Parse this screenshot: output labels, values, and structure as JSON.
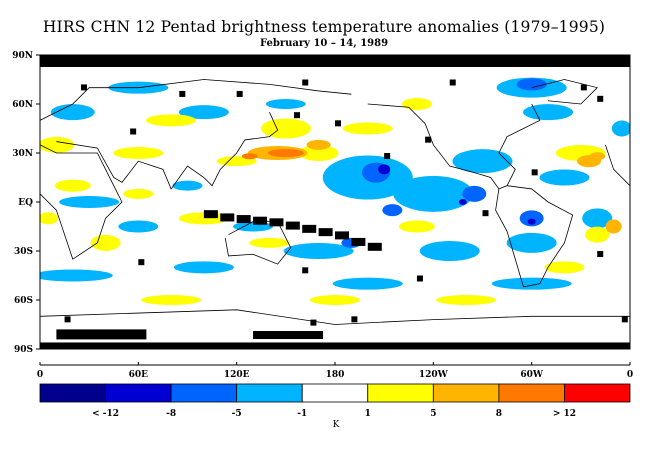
{
  "title": "HIRS CHN 12 Pentad brightness temperature anomalies (1979–1995)",
  "subtitle": "February 10 – 14, 1989",
  "lat_labels": [
    "90N",
    "60N",
    "30N",
    "EQ",
    "30S",
    "60S",
    "90S"
  ],
  "lon_labels": [
    "0",
    "60E",
    "120E",
    "180",
    "120W",
    "60W",
    "0"
  ],
  "colorbar": {
    "units": "K",
    "colors": [
      "#00008c",
      "#0000d2",
      "#0064ff",
      "#00b4ff",
      "#ffffff",
      "#ffff00",
      "#ffb400",
      "#ff7800",
      "#ff0000"
    ],
    "labels": [
      "< -12",
      "-8",
      "-5",
      "-1",
      "1",
      "5",
      "8",
      "> 12"
    ]
  },
  "colors": {
    "no_data": "#000000",
    "light_blue": "#00b4ff",
    "blue": "#0064ff",
    "dark_blue": "#0000d2",
    "yellow": "#ffff00",
    "orange": "#ffb400",
    "dark_orange": "#ff7800",
    "coast": "#000000"
  }
}
